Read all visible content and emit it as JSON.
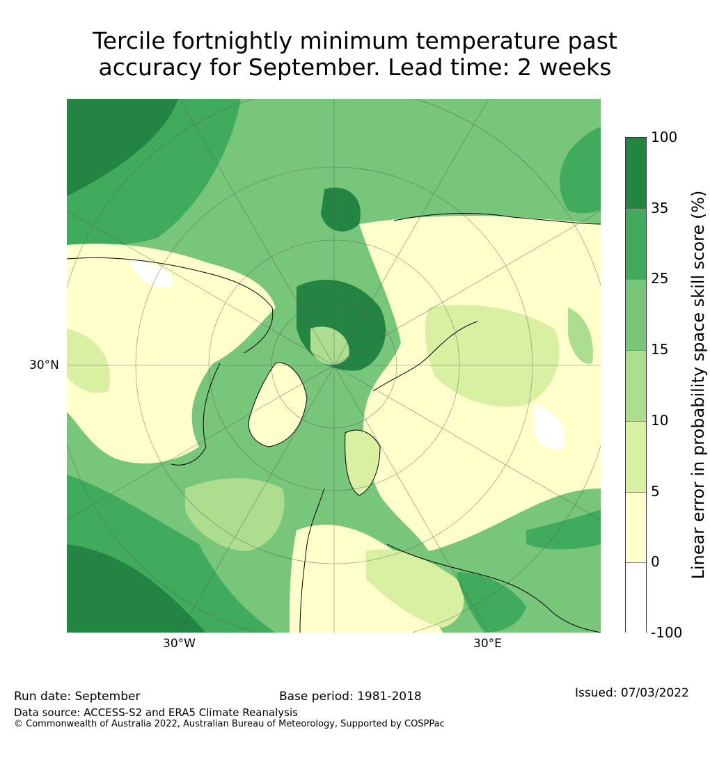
{
  "title": {
    "line1": "Tercile fortnightly minimum temperature past",
    "line2": "accuracy for September. Lead time: 2 weeks"
  },
  "map": {
    "projection": "north-polar-stereographic",
    "lat_label": "30°N",
    "lon_labels": {
      "west": "30°W",
      "east": "30°E"
    }
  },
  "colorbar": {
    "label": "Linear error in probability space skill score (%)",
    "bins": [
      {
        "lower": "-100",
        "color": "#ffffff"
      },
      {
        "lower": "0",
        "color": "#ffffcc"
      },
      {
        "lower": "5",
        "color": "#d9f0a3"
      },
      {
        "lower": "10",
        "color": "#addd8e"
      },
      {
        "lower": "15",
        "color": "#78c679"
      },
      {
        "lower": "25",
        "color": "#41ab5d"
      },
      {
        "lower": "35",
        "color": "#238443"
      }
    ],
    "top_label": "100"
  },
  "footer": {
    "run_date": "Run date: September",
    "base_period": "Base period: 1981-2018",
    "issued": "Issued: 07/03/2022",
    "data_source": "Data source: ACCESS-S2 and ERA5 Climate Reanalysis",
    "copyright": "© Commonwealth of Australia 2022, Australian Bureau of Meteorology, Supported by COSPPac"
  }
}
